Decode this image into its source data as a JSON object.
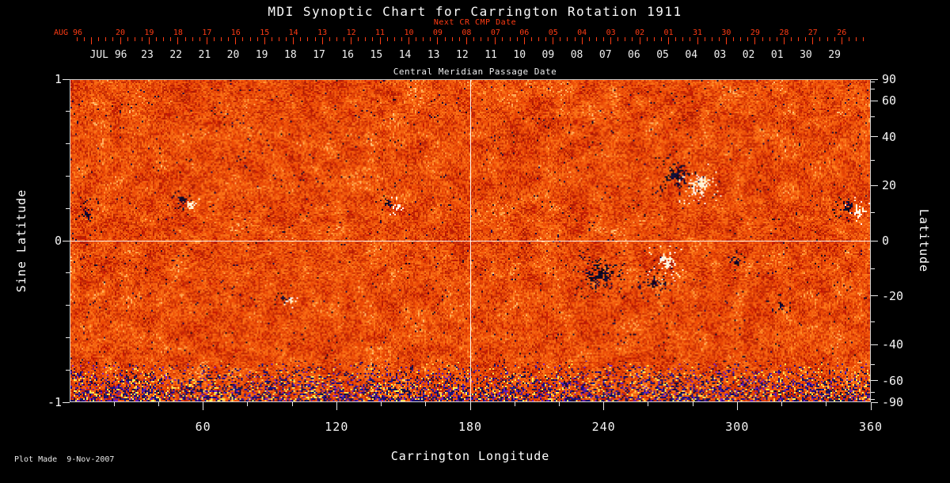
{
  "title": "MDI Synoptic Chart for Carrington Rotation 1911",
  "footer": {
    "plot_made": "Plot Made  9-Nov-2007"
  },
  "chart_data": {
    "type": "heatmap",
    "title": "MDI Synoptic Chart for Carrington Rotation 1911",
    "description": "Full-surface solar synoptic magnetogram: mottled orange-red quiet-Sun field with dark (negative) and white (positive) active-region patches, a dense blue/purple speckle band along the southern (bottom) edge, and white crosshair reference lines at Carrington longitude 180 and sine latitude 0.",
    "x_axis": {
      "label": "Carrington Longitude",
      "range": [
        0,
        360
      ],
      "major_ticks": [
        60,
        120,
        180,
        240,
        300,
        360
      ],
      "minor_tick_step": 20
    },
    "left_axis": {
      "label": "Sine Latitude",
      "range": [
        -1,
        1
      ],
      "major_ticks": [
        1,
        0,
        -1
      ],
      "minor_tick_step": 0.2
    },
    "right_axis": {
      "label": "Latitude",
      "range_deg": [
        -90,
        90
      ],
      "major_ticks": [
        90,
        60,
        40,
        20,
        0,
        -20,
        -40,
        -60,
        -90
      ],
      "minor_ticks": [
        80,
        70,
        50,
        30,
        10,
        -10,
        -30,
        -50,
        -70,
        -80
      ]
    },
    "top_axis_white": {
      "label": "Central Meridian Passage Date",
      "month_label": "JUL 96",
      "tick_labels": [
        "23",
        "22",
        "21",
        "20",
        "19",
        "18",
        "17",
        "16",
        "15",
        "14",
        "13",
        "12",
        "11",
        "10",
        "09",
        "08",
        "07",
        "06",
        "05",
        "04",
        "03",
        "02",
        "01",
        "30",
        "29"
      ]
    },
    "top_axis_red": {
      "label": "Next CR CMP Date",
      "month_label": "AUG 96",
      "tick_labels": [
        "20",
        "19",
        "18",
        "17",
        "16",
        "15",
        "14",
        "13",
        "12",
        "11",
        "10",
        "09",
        "08",
        "07",
        "06",
        "05",
        "04",
        "03",
        "02",
        "01",
        "31",
        "30",
        "29",
        "28",
        "27",
        "26"
      ]
    },
    "grid_lines": {
      "longitude": [
        180
      ],
      "sine_latitude": [
        0
      ]
    },
    "palette": {
      "background": "#000000",
      "quiet_sun_dark": "#8f1a03",
      "quiet_sun_mid": "#ef5607",
      "quiet_sun_bright": "#ff8c1f",
      "highlight": "#ffdf9a",
      "negative_polarity": "#05051e",
      "positive_polarity": "#fff6dc",
      "south_pole_speckle": "#2a1878",
      "axis_text": "#f5f5f5",
      "red_axis_text": "#ff3c14"
    },
    "active_regions": [
      {
        "lon": 278,
        "sine_lat": 0.385,
        "radius_px": 32,
        "style": "bipolar"
      },
      {
        "lon": 352,
        "sine_lat": 0.2,
        "radius_px": 18,
        "style": "bipolar"
      },
      {
        "lon": 238,
        "sine_lat": -0.205,
        "radius_px": 30,
        "style": "dark"
      },
      {
        "lon": 262,
        "sine_lat": -0.255,
        "radius_px": 14,
        "style": "dark"
      },
      {
        "lon": 268,
        "sine_lat": -0.13,
        "radius_px": 20,
        "style": "white"
      },
      {
        "lon": 145,
        "sine_lat": 0.23,
        "radius_px": 13,
        "style": "bipolar"
      },
      {
        "lon": 52,
        "sine_lat": 0.24,
        "radius_px": 13,
        "style": "bipolar"
      },
      {
        "lon": 97,
        "sine_lat": -0.36,
        "radius_px": 11,
        "style": "bipolar"
      },
      {
        "lon": 7,
        "sine_lat": 0.18,
        "radius_px": 11,
        "style": "dark"
      },
      {
        "lon": 299,
        "sine_lat": -0.12,
        "radius_px": 12,
        "style": "dark"
      },
      {
        "lon": 320,
        "sine_lat": -0.4,
        "radius_px": 10,
        "style": "dark"
      }
    ]
  }
}
